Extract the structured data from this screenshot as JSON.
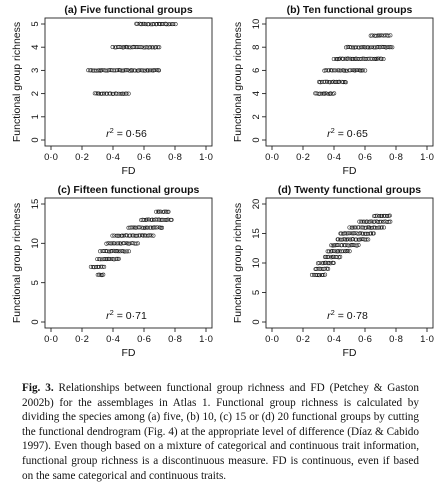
{
  "figure": {
    "caption_label": "Fig. 3.",
    "caption_text": "Relationships between functional group richness and FD (Petchey & Gaston 2002b) for the assemblages in Atlas 1. Functional group richness is calculated by dividing the species among (a) five, (b) 10, (c) 15 or (d) 20 functional groups by cutting the functional dendrogram (Fig. 4) at the appropriate level of difference (Díaz & Cabido 1997). Even though based on a mixture of categorical and continuous trait information, functional group richness is a discontinuous measure. FD is continuous, even if based on the same categorical and continuous traits."
  },
  "chart_data": [
    {
      "type": "scatter",
      "title": "(a) Five functional groups",
      "xlabel": "FD",
      "ylabel": "Functional group richness",
      "xlim": [
        0,
        1
      ],
      "ylim": [
        0,
        5
      ],
      "xticks": [
        "0·0",
        "0·2",
        "0·4",
        "0·6",
        "0·8",
        "1·0"
      ],
      "yticks": [
        "0",
        "1",
        "2",
        "3",
        "4",
        "5"
      ],
      "annotation": {
        "r2_label": "r",
        "r2_value": "2 = 0·56",
        "full": "r2 = 0·56"
      },
      "marker": "open-circle",
      "grid": false,
      "points_by_richness": [
        {
          "y": 2,
          "x_min": 0.28,
          "x_max": 0.5
        },
        {
          "y": 3,
          "x_min": 0.24,
          "x_max": 0.7
        },
        {
          "y": 4,
          "x_min": 0.4,
          "x_max": 0.7
        },
        {
          "y": 5,
          "x_min": 0.55,
          "x_max": 0.8
        }
      ]
    },
    {
      "type": "scatter",
      "title": "(b) Ten functional groups",
      "xlabel": "FD",
      "ylabel": "Functional group richness",
      "xlim": [
        0,
        1
      ],
      "ylim": [
        0,
        10
      ],
      "xticks": [
        "0·0",
        "0·2",
        "0·4",
        "0·6",
        "0·8",
        "1·0"
      ],
      "yticks": [
        "0",
        "2",
        "4",
        "6",
        "8",
        "10"
      ],
      "annotation": {
        "full": "r2 = 0·65"
      },
      "marker": "open-circle",
      "grid": false,
      "points_by_richness": [
        {
          "y": 4,
          "x_min": 0.28,
          "x_max": 0.4
        },
        {
          "y": 5,
          "x_min": 0.3,
          "x_max": 0.48
        },
        {
          "y": 6,
          "x_min": 0.34,
          "x_max": 0.6
        },
        {
          "y": 7,
          "x_min": 0.4,
          "x_max": 0.72
        },
        {
          "y": 8,
          "x_min": 0.48,
          "x_max": 0.78
        },
        {
          "y": 9,
          "x_min": 0.64,
          "x_max": 0.76
        }
      ]
    },
    {
      "type": "scatter",
      "title": "(c) Fifteen functional groups",
      "xlabel": "FD",
      "ylabel": "Functional group richness",
      "xlim": [
        0,
        1
      ],
      "ylim": [
        0,
        15
      ],
      "xticks": [
        "0·0",
        "0·2",
        "0·4",
        "0·6",
        "0·8",
        "1·0"
      ],
      "yticks": [
        "0",
        "5",
        "10",
        "15"
      ],
      "annotation": {
        "full": "r2 = 0·71"
      },
      "marker": "open-circle",
      "grid": false,
      "points_by_richness": [
        {
          "y": 6,
          "x_min": 0.3,
          "x_max": 0.34
        },
        {
          "y": 7,
          "x_min": 0.26,
          "x_max": 0.34
        },
        {
          "y": 8,
          "x_min": 0.3,
          "x_max": 0.44
        },
        {
          "y": 9,
          "x_min": 0.32,
          "x_max": 0.5
        },
        {
          "y": 10,
          "x_min": 0.36,
          "x_max": 0.56
        },
        {
          "y": 11,
          "x_min": 0.4,
          "x_max": 0.66
        },
        {
          "y": 12,
          "x_min": 0.5,
          "x_max": 0.72
        },
        {
          "y": 13,
          "x_min": 0.58,
          "x_max": 0.78
        },
        {
          "y": 14,
          "x_min": 0.68,
          "x_max": 0.76
        }
      ]
    },
    {
      "type": "scatter",
      "title": "(d) Twenty functional groups",
      "xlabel": "FD",
      "ylabel": "Functional group richness",
      "xlim": [
        0,
        1
      ],
      "ylim": [
        0,
        20
      ],
      "xticks": [
        "0·0",
        "0·2",
        "0·4",
        "0·6",
        "0·8",
        "1·0"
      ],
      "yticks": [
        "0",
        "5",
        "10",
        "15",
        "20"
      ],
      "annotation": {
        "full": "r2 = 0·78"
      },
      "marker": "open-circle",
      "grid": false,
      "points_by_richness": [
        {
          "y": 8,
          "x_min": 0.26,
          "x_max": 0.34
        },
        {
          "y": 9,
          "x_min": 0.28,
          "x_max": 0.36
        },
        {
          "y": 10,
          "x_min": 0.3,
          "x_max": 0.4
        },
        {
          "y": 11,
          "x_min": 0.34,
          "x_max": 0.44
        },
        {
          "y": 12,
          "x_min": 0.36,
          "x_max": 0.5
        },
        {
          "y": 13,
          "x_min": 0.38,
          "x_max": 0.56
        },
        {
          "y": 14,
          "x_min": 0.42,
          "x_max": 0.62
        },
        {
          "y": 15,
          "x_min": 0.44,
          "x_max": 0.66
        },
        {
          "y": 16,
          "x_min": 0.5,
          "x_max": 0.72
        },
        {
          "y": 17,
          "x_min": 0.56,
          "x_max": 0.76
        },
        {
          "y": 18,
          "x_min": 0.66,
          "x_max": 0.76
        }
      ]
    }
  ]
}
